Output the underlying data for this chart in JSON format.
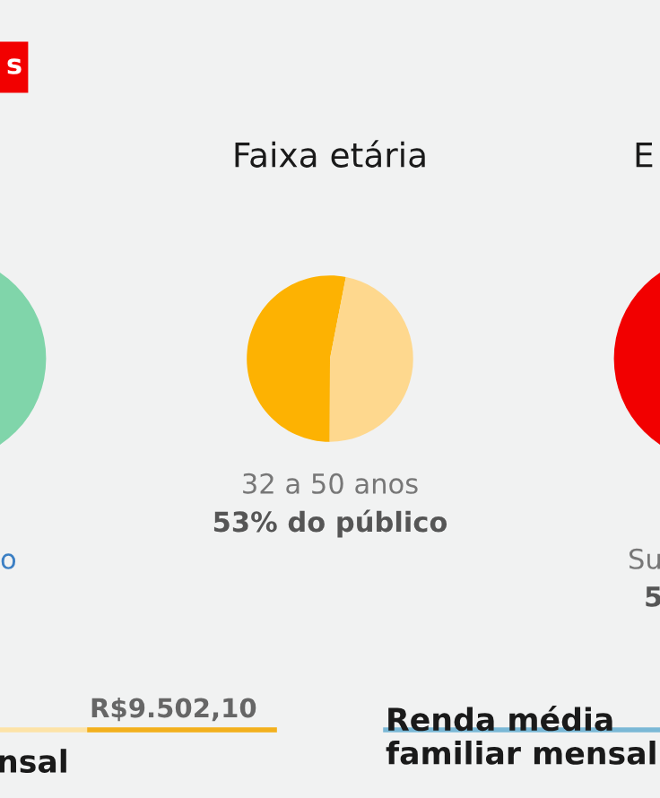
{
  "chart_data": {
    "type": "pie",
    "title": "Faixa etária",
    "categories": [
      "32 a 50 anos",
      null
    ],
    "values": [
      53,
      47
    ],
    "colors": [
      "#fdb202",
      "#fed88e"
    ],
    "annotations": [
      "53% do público",
      "s",
      "o",
      "E",
      "Su",
      "5",
      "R$9.502,10",
      "nsal",
      "Renda média\nfamiliar mensal"
    ]
  }
}
